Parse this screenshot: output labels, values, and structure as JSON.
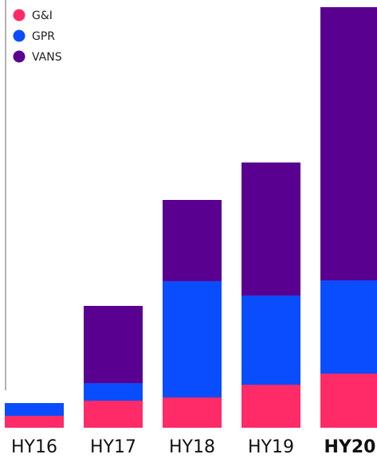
{
  "chart_data": {
    "type": "bar",
    "stacked": true,
    "title": "",
    "xlabel": "",
    "ylabel": "",
    "categories": [
      "HY16",
      "HY17",
      "HY18",
      "HY19",
      "HY20"
    ],
    "highlight_category": "HY20",
    "series": [
      {
        "name": "G&I",
        "color": "#ff2a68",
        "values": [
          15,
          34,
          38,
          54,
          68
        ]
      },
      {
        "name": "GPR",
        "color": "#0a4dff",
        "values": [
          16,
          22,
          146,
          112,
          117
        ]
      },
      {
        "name": "VANS",
        "color": "#5a0090",
        "values": [
          0,
          97,
          102,
          167,
          343
        ]
      }
    ],
    "ylim": [
      0,
      528
    ],
    "grid": false,
    "legend_position": "top-left"
  }
}
